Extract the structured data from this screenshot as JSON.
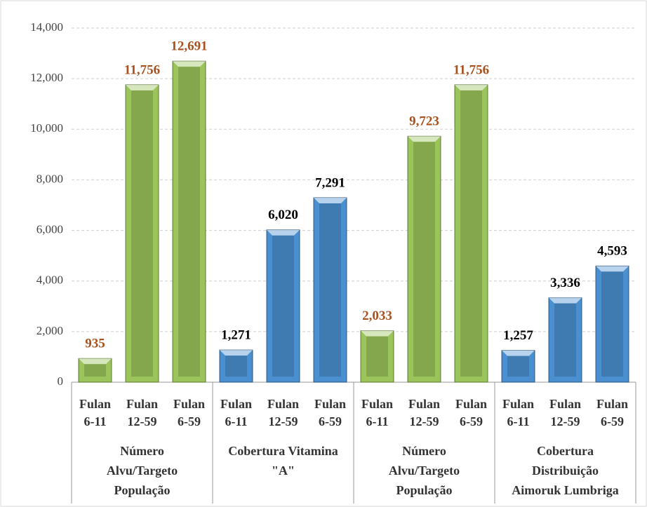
{
  "chart_data": {
    "type": "bar",
    "ylim": [
      0,
      14000
    ],
    "yticks": [
      0,
      {
        "value": 2000,
        "label": "2,000"
      },
      {
        "value": 4000,
        "label": "4,000"
      },
      {
        "value": 6000,
        "label": "6,000"
      },
      {
        "value": 8000,
        "label": "8,000"
      },
      {
        "value": 10000,
        "label": "10,000"
      },
      {
        "value": 12000,
        "label": "12,000"
      },
      {
        "value": 14000,
        "label": "14,000"
      }
    ],
    "grid": true,
    "groups": [
      {
        "name": [
          "Número",
          "Alvu/Targeto",
          "População"
        ],
        "color": "#9bc45a",
        "label_color": "#a8501e",
        "categories": [
          [
            "Fulan",
            "6-11"
          ],
          [
            "Fulan",
            "12-59"
          ],
          [
            "Fulan",
            "6-59"
          ]
        ],
        "values": [
          935,
          11756,
          12691
        ],
        "value_labels": [
          "935",
          "11,756",
          "12,691"
        ]
      },
      {
        "name": [
          "Cobertura Vitamina",
          "\"A\""
        ],
        "color": "#4a8fd0",
        "label_color": "#000000",
        "categories": [
          [
            "Fulan",
            "6-11"
          ],
          [
            "Fulan",
            "12-59"
          ],
          [
            "Fulan",
            "6-59"
          ]
        ],
        "values": [
          1271,
          6020,
          7291
        ],
        "value_labels": [
          "1,271",
          "6,020",
          "7,291"
        ]
      },
      {
        "name": [
          "Número",
          "Alvu/Targeto",
          "População"
        ],
        "color": "#9bc45a",
        "label_color": "#a8501e",
        "categories": [
          [
            "Fulan",
            "6-11"
          ],
          [
            "Fulan",
            "12-59"
          ],
          [
            "Fulan",
            "6-59"
          ]
        ],
        "values": [
          2033,
          9723,
          11756
        ],
        "value_labels": [
          "2,033",
          "9,723",
          "11,756"
        ]
      },
      {
        "name": [
          "Cobertura",
          "Distribuição",
          "Aimoruk Lumbriga"
        ],
        "color": "#4a8fd0",
        "label_color": "#000000",
        "categories": [
          [
            "Fulan",
            "6-11"
          ],
          [
            "Fulan",
            "12-59"
          ],
          [
            "Fulan",
            "6-59"
          ]
        ],
        "values": [
          1257,
          3336,
          4593
        ],
        "value_labels": [
          "1,257",
          "3,336",
          "4,593"
        ]
      }
    ]
  }
}
